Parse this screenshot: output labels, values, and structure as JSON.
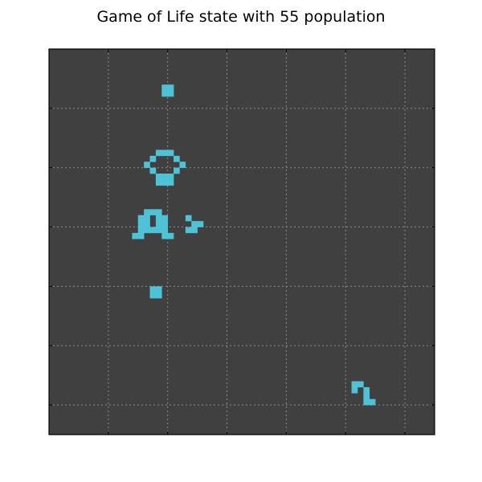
{
  "title": "Game of Life state with 55 population",
  "board": {
    "cols": 65,
    "rows": 65,
    "background_color": "#404040",
    "cell_color": "#4fc3d6",
    "grid_color": "#8a8a8a",
    "grid_style": "dotted",
    "grid_every": 10,
    "tick_labels_shown": false
  },
  "live_cells": [
    [
      19,
      6
    ],
    [
      20,
      6
    ],
    [
      19,
      7
    ],
    [
      20,
      7
    ],
    [
      18,
      17
    ],
    [
      19,
      17
    ],
    [
      20,
      17
    ],
    [
      17,
      18
    ],
    [
      21,
      18
    ],
    [
      16,
      19
    ],
    [
      22,
      19
    ],
    [
      17,
      20
    ],
    [
      21,
      20
    ],
    [
      18,
      21
    ],
    [
      19,
      21
    ],
    [
      20,
      21
    ],
    [
      18,
      22
    ],
    [
      19,
      22
    ],
    [
      20,
      22
    ],
    [
      16,
      27
    ],
    [
      17,
      27
    ],
    [
      18,
      27
    ],
    [
      15,
      28
    ],
    [
      16,
      28
    ],
    [
      18,
      28
    ],
    [
      19,
      28
    ],
    [
      23,
      28
    ],
    [
      15,
      29
    ],
    [
      16,
      29
    ],
    [
      18,
      29
    ],
    [
      19,
      29
    ],
    [
      24,
      29
    ],
    [
      25,
      29
    ],
    [
      15,
      30
    ],
    [
      16,
      30
    ],
    [
      17,
      30
    ],
    [
      18,
      30
    ],
    [
      19,
      30
    ],
    [
      23,
      30
    ],
    [
      24,
      30
    ],
    [
      14,
      31
    ],
    [
      15,
      31
    ],
    [
      19,
      31
    ],
    [
      20,
      31
    ],
    [
      17,
      40
    ],
    [
      18,
      40
    ],
    [
      17,
      41
    ],
    [
      18,
      41
    ],
    [
      51,
      56
    ],
    [
      52,
      56
    ],
    [
      51,
      57
    ],
    [
      53,
      57
    ],
    [
      53,
      58
    ],
    [
      53,
      59
    ],
    [
      54,
      59
    ]
  ]
}
